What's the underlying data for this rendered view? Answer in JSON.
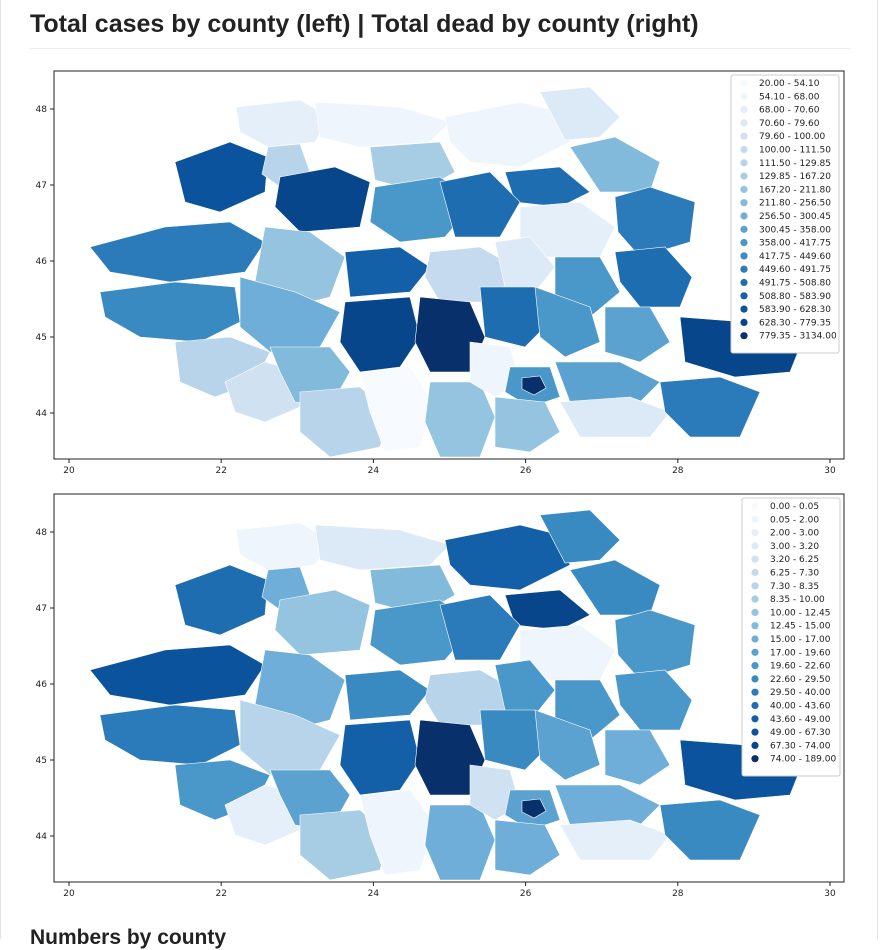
{
  "page": {
    "title": "Total cases by county (left) | Total dead by county (right)",
    "section_title": "Numbers by county"
  },
  "axes": {
    "x_ticks": [
      "20",
      "22",
      "24",
      "26",
      "28",
      "30"
    ],
    "y_ticks": [
      "48",
      "47",
      "46",
      "45",
      "44"
    ]
  },
  "maps": [
    {
      "legend": [
        "20.00 - 54.10",
        "54.10 - 68.00",
        "68.00 - 70.60",
        "70.60 - 79.60",
        "79.60 - 100.00",
        "100.00 - 111.50",
        "111.50 - 129.85",
        "129.85 - 167.20",
        "167.20 - 211.80",
        "211.80 - 256.50",
        "256.50 - 300.45",
        "300.45 - 358.00",
        "358.00 - 417.75",
        "417.75 - 449.60",
        "449.60 - 491.75",
        "491.75 - 508.80",
        "508.80 - 583.90",
        "583.90 - 628.30",
        "628.30 - 779.35",
        "779.35 - 3134.00"
      ],
      "colormap": "Blues"
    },
    {
      "legend": [
        "0.00 - 0.05",
        "0.05 - 2.00",
        "2.00 - 3.00",
        "3.00 - 3.20",
        "3.20 - 6.25",
        "6.25 - 7.30",
        "7.30 - 8.35",
        "8.35 - 10.00",
        "10.00 - 12.45",
        "12.45 - 15.00",
        "15.00 - 17.00",
        "17.00 - 19.60",
        "19.60 - 22.60",
        "22.60 - 29.50",
        "29.50 - 40.00",
        "40.00 - 43.60",
        "43.60 - 49.00",
        "49.00 - 67.30",
        "67.30 - 74.00",
        "74.00 - 189.00"
      ],
      "colormap": "Blues"
    }
  ],
  "colors": [
    "#f7fbff",
    "#eef5fc",
    "#e5eff9",
    "#dce9f6",
    "#d0e1f2",
    "#c5daee",
    "#b7d4ea",
    "#a6cde4",
    "#94c4df",
    "#82badb",
    "#6eaed8",
    "#5ca2d1",
    "#4a97c9",
    "#3a8ac2",
    "#2b7bba",
    "#1f6db1",
    "#1460a8",
    "#0b549d",
    "#08468b",
    "#08306b"
  ]
}
